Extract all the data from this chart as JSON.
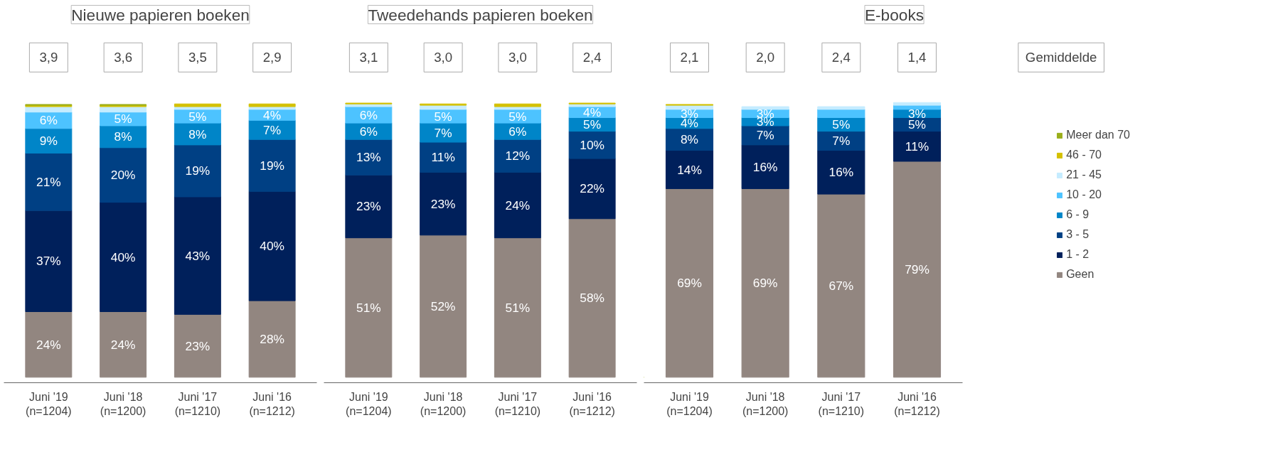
{
  "chart_data": [
    {
      "type": "bar",
      "stacked": true,
      "title": "Nieuwe papieren boeken",
      "categories": [
        "Juni '19\n(n=1204)",
        "Juni '18\n(n=1200)",
        "Juni '17\n(n=1210)",
        "Juni '16\n(n=1212)"
      ],
      "annotations": [
        "3,9",
        "3,6",
        "3,5",
        "2,9"
      ],
      "grid": false,
      "tick_labels": "x",
      "series": [
        {
          "color": "#928680",
          "values": [
            24,
            24,
            23,
            28
          ],
          "value_labels": [
            "24%",
            "24%",
            "23%",
            "28%"
          ]
        },
        {
          "color": "#00205b",
          "values": [
            37,
            40,
            43,
            40
          ],
          "value_labels": [
            "37%",
            "40%",
            "43%",
            "40%"
          ]
        },
        {
          "color": "#004084",
          "values": [
            21,
            20,
            19,
            19
          ],
          "value_labels": [
            "21%",
            "20%",
            "19%",
            "19%"
          ]
        },
        {
          "color": "#0085c8",
          "values": [
            9,
            8,
            8,
            7
          ],
          "value_labels": [
            "9%",
            "8%",
            "8%",
            "7%"
          ]
        },
        {
          "color": "#4dc3ff",
          "values": [
            6,
            5,
            5,
            4
          ],
          "value_labels": [
            "6%",
            "5%",
            "5%",
            "4%"
          ]
        },
        {
          "color": "#c5ecff",
          "values": [
            2,
            2,
            1,
            1
          ]
        },
        {
          "color": "#d4c000",
          "values": [
            0.5,
            0.5,
            1,
            1
          ]
        },
        {
          "color": "#9aae1a",
          "values": [
            0.3,
            0.3,
            null,
            null
          ]
        }
      ]
    },
    {
      "type": "bar",
      "stacked": true,
      "title": "Tweedehands papieren boeken",
      "categories": [
        "Juni '19\n(n=1204)",
        "Juni '18\n(n=1200)",
        "Juni '17\n(n=1210)",
        "Juni '16\n(n=1212)"
      ],
      "annotations": [
        "3,1",
        "3,0",
        "3,0",
        "2,4"
      ],
      "grid": false,
      "tick_labels": "x",
      "series": [
        {
          "color": "#928680",
          "values": [
            51,
            52,
            51,
            58
          ],
          "value_labels": [
            "51%",
            "52%",
            "51%",
            "58%"
          ]
        },
        {
          "color": "#00205b",
          "values": [
            23,
            23,
            24,
            22
          ],
          "value_labels": [
            "23%",
            "23%",
            "24%",
            "22%"
          ]
        },
        {
          "color": "#004084",
          "values": [
            13,
            11,
            12,
            10
          ],
          "value_labels": [
            "13%",
            "11%",
            "12%",
            "10%"
          ]
        },
        {
          "color": "#0085c8",
          "values": [
            6,
            7,
            6,
            5
          ],
          "value_labels": [
            "6%",
            "7%",
            "6%",
            "5%"
          ]
        },
        {
          "color": "#4dc3ff",
          "values": [
            6,
            5,
            5,
            4
          ],
          "value_labels": [
            "6%",
            "5%",
            "5%",
            "4%"
          ]
        },
        {
          "color": "#c5ecff",
          "values": [
            1,
            1.5,
            1,
            1
          ]
        },
        {
          "color": "#d4c000",
          "values": [
            0.3,
            0.5,
            1,
            0.3
          ]
        }
      ]
    },
    {
      "type": "bar",
      "stacked": true,
      "title": "E-books",
      "categories": [
        "Juni '19\n(n=1204)",
        "Juni '18\n(n=1200)",
        "Juni '17\n(n=1210)",
        "Juni '16\n(n=1212)"
      ],
      "annotations": [
        "2,1",
        "2,0",
        "2,4",
        "1,4",
        "Gemiddelde"
      ],
      "grid": false,
      "legend": "right",
      "tick_labels": "x",
      "series": [
        {
          "name": "Geen",
          "color": "#928680",
          "values": [
            69,
            69,
            67,
            79
          ],
          "value_labels": [
            "69%",
            "69%",
            "67%",
            "79%"
          ]
        },
        {
          "name": "1 - 2",
          "color": "#00205b",
          "values": [
            14,
            16,
            16,
            11
          ],
          "value_labels": [
            "14%",
            "16%",
            "16%",
            "11%"
          ]
        },
        {
          "name": "3 - 5",
          "color": "#004084",
          "values": [
            8,
            7,
            7,
            5
          ],
          "value_labels": [
            "8%",
            "7%",
            "7%",
            "5%"
          ]
        },
        {
          "name": "6 - 9",
          "color": "#0085c8",
          "values": [
            4,
            3,
            5,
            3
          ],
          "value_labels": [
            "4%",
            "3%",
            "5%",
            "3%"
          ]
        },
        {
          "name": "10 - 20",
          "color": "#4dc3ff",
          "values": [
            3,
            3,
            3,
            1.5
          ],
          "value_labels": [
            "3%",
            "3%",
            null,
            null
          ]
        },
        {
          "name": "21 - 45",
          "color": "#c5ecff",
          "values": [
            1.5,
            1,
            1,
            1
          ]
        },
        {
          "name": "46 - 70",
          "color": "#d4c000",
          "values": [
            0.3,
            null,
            null,
            null
          ]
        },
        {
          "name": "Meer dan 70",
          "color": "#9aae1a",
          "values": [
            null,
            null,
            null,
            null
          ]
        }
      ]
    }
  ]
}
